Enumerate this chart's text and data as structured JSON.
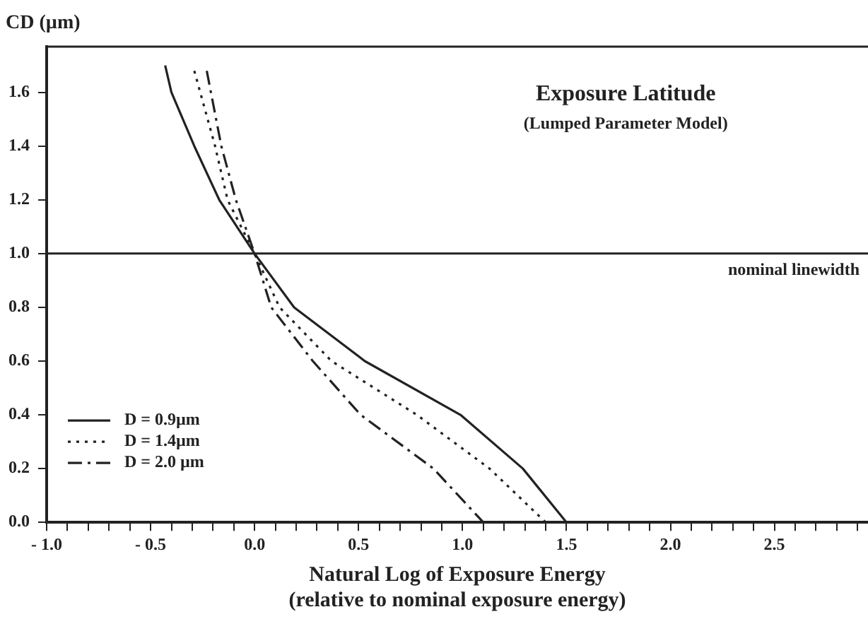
{
  "chart_data": {
    "type": "line",
    "title": "Exposure Latitude",
    "subtitle": "(Lumped Parameter Model)",
    "xlabel": "Natural Log of Exposure Energy\n(relative to nominal exposure energy)",
    "ylabel": "CD (µm)",
    "xlim": [
      -1.0,
      2.95
    ],
    "ylim": [
      0,
      1.77
    ],
    "xticks": [
      {
        "value": -1.0,
        "label": "- 1.0"
      },
      {
        "value": -0.9,
        "label": null
      },
      {
        "value": -0.8,
        "label": null
      },
      {
        "value": -0.7,
        "label": null
      },
      {
        "value": -0.6,
        "label": null
      },
      {
        "value": -0.5,
        "label": "- 0.5"
      },
      {
        "value": -0.4,
        "label": null
      },
      {
        "value": -0.3,
        "label": null
      },
      {
        "value": -0.2,
        "label": null
      },
      {
        "value": -0.1,
        "label": null
      },
      {
        "value": 0,
        "label": "0.0"
      },
      {
        "value": 0.1,
        "label": null
      },
      {
        "value": 0.2,
        "label": null
      },
      {
        "value": 0.3,
        "label": null
      },
      {
        "value": 0.4,
        "label": null
      },
      {
        "value": 0.5,
        "label": "0.5"
      },
      {
        "value": 0.6,
        "label": null
      },
      {
        "value": 0.7,
        "label": null
      },
      {
        "value": 0.8,
        "label": null
      },
      {
        "value": 0.9,
        "label": null
      },
      {
        "value": 1.0,
        "label": "1.0"
      },
      {
        "value": 1.1,
        "label": null
      },
      {
        "value": 1.2,
        "label": null
      },
      {
        "value": 1.3,
        "label": null
      },
      {
        "value": 1.4,
        "label": null
      },
      {
        "value": 1.5,
        "label": "1.5"
      },
      {
        "value": 1.6,
        "label": null
      },
      {
        "value": 1.7,
        "label": null
      },
      {
        "value": 1.8,
        "label": null
      },
      {
        "value": 1.9,
        "label": null
      },
      {
        "value": 2.0,
        "label": "2.0"
      },
      {
        "value": 2.1,
        "label": null
      },
      {
        "value": 2.2,
        "label": null
      },
      {
        "value": 2.3,
        "label": null
      },
      {
        "value": 2.4,
        "label": null
      },
      {
        "value": 2.5,
        "label": "2.5"
      },
      {
        "value": 2.6,
        "label": null
      },
      {
        "value": 2.7,
        "label": null
      },
      {
        "value": 2.8,
        "label": null
      },
      {
        "value": 2.9,
        "label": null
      }
    ],
    "yticks": [
      {
        "value": 0,
        "label": "0.0"
      },
      {
        "value": 0.2,
        "label": "0.2"
      },
      {
        "value": 0.4,
        "label": "0.4"
      },
      {
        "value": 0.6,
        "label": "0.6"
      },
      {
        "value": 0.8,
        "label": "0.8"
      },
      {
        "value": 1.0,
        "label": "1.0"
      },
      {
        "value": 1.2,
        "label": "1.2"
      },
      {
        "value": 1.4,
        "label": "1.4"
      },
      {
        "value": 1.6,
        "label": "1.6"
      }
    ],
    "grid": false,
    "legend": "bottom left",
    "marker": "none",
    "ref_lines": [
      {
        "axis": "y",
        "value": 1.0,
        "label": "nominal linewidth",
        "color": "#222222"
      }
    ],
    "series": [
      {
        "name": "D = 0.9µm",
        "color": "#222222",
        "line_style": "solid",
        "x": [
          -0.43,
          -0.4,
          -0.29,
          -0.17,
          0,
          0.19,
          0.53,
          0.99,
          1.29,
          1.5
        ],
        "values": [
          1.7,
          1.6,
          1.4,
          1.2,
          1.0,
          0.8,
          0.6,
          0.4,
          0.2,
          0
        ]
      },
      {
        "name": "D = 1.4µm",
        "color": "#222222",
        "line_style": "dotted",
        "x": [
          -0.29,
          -0.19,
          -0.13,
          0,
          0.12,
          0.37,
          0.78,
          1.13,
          1.4
        ],
        "values": [
          1.68,
          1.4,
          1.2,
          1.0,
          0.8,
          0.6,
          0.4,
          0.2,
          0
        ]
      },
      {
        "name": "D = 2.0 µm",
        "color": "#222222",
        "line_style": "dashdot",
        "x": [
          -0.23,
          -0.16,
          -0.09,
          0,
          0.08,
          0.28,
          0.51,
          0.86,
          1.1
        ],
        "values": [
          1.68,
          1.4,
          1.2,
          1.0,
          0.8,
          0.6,
          0.4,
          0.2,
          0
        ]
      }
    ]
  }
}
